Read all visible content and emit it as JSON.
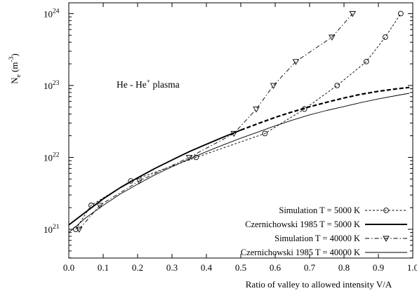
{
  "chart_data": {
    "type": "line",
    "annotation": {
      "text": "He - He",
      "sup": "+",
      "suffix": " plasma"
    },
    "xlabel": "Ratio of valley to allowed intensity V/A",
    "ylabel": {
      "base": "N",
      "sub": "e",
      "unit_open": " (m",
      "unit_sup": "-3",
      "unit_close": ")"
    },
    "xlim": [
      0,
      1
    ],
    "ylim_log10": [
      20.6,
      24.15
    ],
    "yscale": "log",
    "x_ticks": [
      "0.0",
      "0.1",
      "0.2",
      "0.3",
      "0.4",
      "0.5",
      "0.6",
      "0.7",
      "0.8",
      "0.9",
      "1.0"
    ],
    "y_ticks": [
      {
        "base": "10",
        "exp": "21"
      },
      {
        "base": "10",
        "exp": "22"
      },
      {
        "base": "10",
        "exp": "23"
      },
      {
        "base": "10",
        "exp": "24"
      }
    ],
    "legend_position": "bottom-right",
    "series": [
      {
        "name": "Simulation T =   5000 K",
        "style": "sim5000",
        "points": [
          [
            0.02,
            1e+21
          ],
          [
            0.065,
            2.15e+21
          ],
          [
            0.18,
            4.7e+21
          ],
          [
            0.37,
            1e+22
          ],
          [
            0.57,
            2.15e+22
          ],
          [
            0.685,
            4.7e+22
          ],
          [
            0.78,
            1e+23
          ],
          [
            0.865,
            2.15e+23
          ],
          [
            0.92,
            4.7e+23
          ],
          [
            0.965,
            1e+24
          ]
        ]
      },
      {
        "name": "Czernichowski 1985 T =   5000 K",
        "style": "czer5000",
        "points": [
          [
            0.0,
            1.15e+21
          ],
          [
            0.05,
            1.75e+21
          ],
          [
            0.1,
            2.65e+21
          ],
          [
            0.15,
            3.8e+21
          ],
          [
            0.2,
            5.2e+21
          ],
          [
            0.25,
            7e+21
          ],
          [
            0.3,
            9.2e+21
          ],
          [
            0.35,
            1.2e+22
          ],
          [
            0.4,
            1.52e+22
          ],
          [
            0.45,
            1.92e+22
          ],
          [
            0.5,
            2.4e+22
          ]
        ],
        "extrapolated_points": [
          [
            0.5,
            2.4e+22
          ],
          [
            0.55,
            2.95e+22
          ],
          [
            0.6,
            3.6e+22
          ],
          [
            0.65,
            4.3e+22
          ],
          [
            0.7,
            5.05e+22
          ],
          [
            0.75,
            5.85e+22
          ],
          [
            0.8,
            6.7e+22
          ],
          [
            0.85,
            7.55e+22
          ],
          [
            0.9,
            8.3e+22
          ],
          [
            0.95,
            8.95e+22
          ],
          [
            0.99,
            9.4e+22
          ]
        ]
      },
      {
        "name": "Simulation T = 40000 K",
        "style": "sim40000",
        "points": [
          [
            0.03,
            1e+21
          ],
          [
            0.09,
            2.15e+21
          ],
          [
            0.205,
            4.7e+21
          ],
          [
            0.35,
            1e+22
          ],
          [
            0.48,
            2.15e+22
          ],
          [
            0.545,
            4.7e+22
          ],
          [
            0.595,
            1e+23
          ],
          [
            0.66,
            2.15e+23
          ],
          [
            0.765,
            4.7e+23
          ],
          [
            0.825,
            1e+24
          ]
        ]
      },
      {
        "name": "Czernichowski 1985 T = 40000 K",
        "style": "czer40000",
        "points": [
          [
            0.0,
            9e+20
          ],
          [
            0.05,
            1.45e+21
          ],
          [
            0.1,
            2.15e+21
          ],
          [
            0.15,
            3.1e+21
          ],
          [
            0.2,
            4.25e+21
          ],
          [
            0.25,
            5.7e+21
          ],
          [
            0.3,
            7.4e+21
          ],
          [
            0.35,
            9.5e+21
          ],
          [
            0.4,
            1.2e+22
          ],
          [
            0.45,
            1.5e+22
          ],
          [
            0.5,
            1.85e+22
          ],
          [
            0.55,
            2.25e+22
          ],
          [
            0.6,
            2.75e+22
          ],
          [
            0.65,
            3.3e+22
          ],
          [
            0.7,
            3.9e+22
          ],
          [
            0.75,
            4.5e+22
          ],
          [
            0.8,
            5.1e+22
          ],
          [
            0.85,
            5.8e+22
          ],
          [
            0.9,
            6.5e+22
          ],
          [
            0.95,
            7.2e+22
          ],
          [
            0.99,
            7.8e+22
          ]
        ]
      }
    ]
  }
}
